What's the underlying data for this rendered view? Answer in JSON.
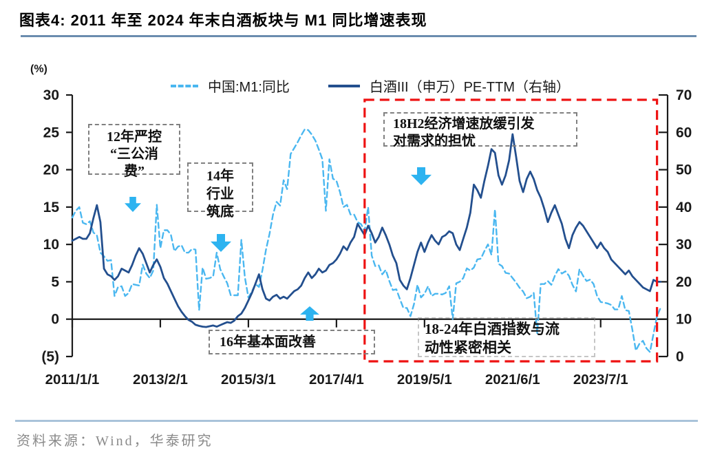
{
  "header": {
    "title": "图表4:  2011 年至 2024 年末白酒板块与 M1 同比增速表现"
  },
  "legend": [
    {
      "label": "中国:M1:同比",
      "style": "dashed",
      "color": "#4ab7f0"
    },
    {
      "label": "白酒III（申万）PE-TTM（右轴）",
      "style": "solid",
      "color": "#234f8e"
    }
  ],
  "annotations": [
    {
      "id": "anno-2012",
      "text": "12年严控\n“三公消\n费”",
      "arrow": "down"
    },
    {
      "id": "anno-2014",
      "text": "14年\n行业\n筑底",
      "arrow": "down"
    },
    {
      "id": "anno-2016",
      "text": "16年基本面改善",
      "arrow": "up"
    },
    {
      "id": "anno-18h2",
      "text": "18H2经济增速放缓引发\n对需求的担忧",
      "arrow": "down"
    },
    {
      "id": "anno-1824",
      "text": "18-24年白酒指数与流\n动性紧密相关",
      "arrow": "none"
    }
  ],
  "footer": {
    "source": "资料来源：Wind，华泰研究"
  },
  "colors": {
    "m1_line": "#4ab7f0",
    "pe_line": "#234f8e",
    "arrow": "#2db3f0",
    "highlight_box": "#ee1212",
    "annotation_border": "#808080",
    "axis": "#1a1a1a",
    "title_underline": "#6a8cae",
    "footer_divider": "#a9c3da",
    "source_text": "#8a8a8a"
  },
  "chart_data": {
    "type": "line",
    "title": "2011-2024 白酒板块与 M1 同比增速",
    "x_axis": {
      "tick_labels": [
        "2011/1/1",
        "2013/2/1",
        "2015/3/1",
        "2017/4/1",
        "2019/5/1",
        "2021/6/1",
        "2023/7/1"
      ],
      "tick_month_index": [
        0,
        25,
        50,
        75,
        100,
        125,
        150
      ],
      "start_month": "2011-01",
      "end_month": "2024-12",
      "months_total": 168
    },
    "left_axis": {
      "label": "(%)",
      "tick_labels": [
        "30",
        "25",
        "20",
        "15",
        "10",
        "5",
        "0",
        "(5)"
      ],
      "tick_values": [
        30,
        25,
        20,
        15,
        10,
        5,
        0,
        -5
      ],
      "min": -5,
      "max": 30
    },
    "right_axis": {
      "tick_labels": [
        "70",
        "60",
        "50",
        "40",
        "30",
        "20",
        "10",
        "0"
      ],
      "tick_values": [
        70,
        60,
        50,
        40,
        30,
        20,
        10,
        0
      ],
      "min": 0,
      "max": 70
    },
    "grid": false,
    "legend_position": "top",
    "highlight_region": {
      "label": "18-24年",
      "start_month_index": 83,
      "end_month_index": 166,
      "color": "#ee1212"
    },
    "series": [
      {
        "name": "中国:M1:同比",
        "axis": "left",
        "style": "dashed",
        "color": "#4ab7f0",
        "values": [
          13.6,
          14.5,
          15.0,
          12.9,
          12.7,
          13.1,
          11.6,
          11.2,
          8.9,
          8.4,
          7.8,
          7.9,
          3.1,
          4.3,
          4.4,
          3.1,
          3.5,
          4.7,
          4.6,
          4.5,
          7.3,
          6.1,
          5.5,
          6.5,
          15.3,
          9.5,
          11.9,
          11.9,
          11.3,
          9.1,
          9.7,
          9.9,
          8.9,
          8.9,
          9.4,
          9.3,
          1.2,
          6.9,
          5.4,
          5.5,
          5.7,
          8.9,
          6.7,
          5.7,
          4.8,
          3.2,
          3.2,
          3.2,
          10.6,
          5.6,
          2.9,
          3.7,
          4.7,
          4.3,
          6.6,
          9.3,
          11.4,
          14.0,
          15.7,
          15.2,
          18.6,
          17.4,
          22.1,
          22.9,
          23.7,
          24.6,
          25.4,
          25.3,
          24.7,
          23.9,
          22.7,
          21.4,
          14.5,
          21.4,
          18.8,
          18.5,
          17.0,
          15.0,
          15.3,
          14.0,
          14.0,
          13.0,
          12.7,
          11.8,
          15.0,
          8.5,
          7.1,
          7.2,
          6.0,
          6.6,
          5.1,
          3.9,
          4.0,
          2.7,
          1.5,
          1.5,
          0.4,
          2.0,
          4.6,
          2.9,
          3.4,
          4.4,
          3.1,
          3.4,
          3.4,
          3.3,
          3.5,
          4.4,
          0.0,
          4.8,
          5.0,
          5.5,
          6.8,
          6.5,
          6.9,
          8.0,
          8.1,
          9.1,
          10.0,
          8.6,
          14.7,
          7.4,
          7.1,
          6.2,
          6.1,
          5.5,
          4.9,
          4.2,
          3.7,
          2.8,
          3.0,
          3.5,
          -1.9,
          4.7,
          4.7,
          5.1,
          4.6,
          5.8,
          6.7,
          6.1,
          6.4,
          5.8,
          4.6,
          3.7,
          6.7,
          5.8,
          5.1,
          5.3,
          4.7,
          3.1,
          2.3,
          2.2,
          2.1,
          1.9,
          1.3,
          1.3,
          3.1,
          1.2,
          1.1,
          -1.4,
          -4.2,
          -3.3,
          -2.9,
          -3.9,
          -4.4,
          -2.0,
          0.4,
          1.5
        ]
      },
      {
        "name": "白酒III（申万）PE-TTM（右轴）",
        "axis": "right",
        "style": "solid",
        "color": "#234f8e",
        "values": [
          31,
          31.5,
          32,
          31.5,
          31.5,
          33,
          37,
          40.5,
          36,
          23.5,
          22,
          21.5,
          20.5,
          21.5,
          23.5,
          23,
          22.5,
          24.5,
          27,
          29,
          27.5,
          25,
          22.5,
          24.5,
          26,
          24,
          21,
          19.5,
          17.5,
          15.5,
          13.5,
          12,
          10.8,
          9.8,
          9.3,
          8.5,
          8.2,
          8.0,
          7.9,
          8.1,
          8.3,
          8.0,
          8.4,
          8.8,
          9.2,
          9.0,
          9.6,
          10.8,
          11.5,
          13,
          15,
          17,
          19.5,
          22,
          18,
          15.5,
          15,
          16,
          16.5,
          15.5,
          16,
          15.5,
          16.5,
          17.5,
          18,
          19,
          21,
          22.5,
          21,
          22,
          23.5,
          22.5,
          23,
          24.5,
          25,
          26,
          27.5,
          29.5,
          28.5,
          30.5,
          32,
          35.5,
          34,
          32.5,
          35,
          33,
          30.5,
          32,
          34.5,
          32.5,
          30,
          27,
          25,
          20.5,
          19,
          18,
          21,
          24.5,
          28,
          30.5,
          28,
          30.5,
          32.5,
          31,
          30,
          32,
          32.5,
          33.5,
          33,
          30,
          28.5,
          31.5,
          34.5,
          38.5,
          46,
          44.5,
          42.5,
          47,
          51,
          55.5,
          54.5,
          48.5,
          46,
          48.5,
          52.5,
          59.5,
          53.5,
          47,
          44,
          47.5,
          49.5,
          47.5,
          44.5,
          42.5,
          39.5,
          36,
          38.5,
          40.5,
          38,
          35.5,
          31.5,
          29,
          32.5,
          34.5,
          36,
          35,
          33.5,
          32,
          30.5,
          29,
          30.5,
          29,
          28,
          26,
          25,
          24,
          23,
          22,
          23,
          21.5,
          20.5,
          19.5,
          18.5,
          18,
          17.5,
          20.5,
          20,
          20
        ]
      }
    ]
  }
}
